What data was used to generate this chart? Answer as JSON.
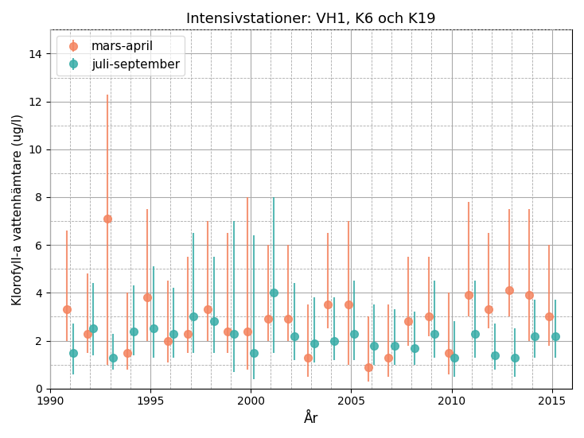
{
  "title": "Intensivstationer: VH1, K6 och K19",
  "xlabel": "År",
  "ylabel": "Klorofyll-a vattenhämtare (ug/l)",
  "xlim": [
    1990,
    2016
  ],
  "ylim": [
    0,
    15
  ],
  "yticks": [
    0,
    2,
    4,
    6,
    8,
    10,
    12,
    14
  ],
  "xticks": [
    1990,
    1995,
    2000,
    2005,
    2010,
    2015
  ],
  "legend": [
    "mars-april",
    "juli-september"
  ],
  "color_spring": "#f4845f",
  "color_summer": "#3aada8",
  "spring": {
    "years": [
      1991,
      1992,
      1993,
      1994,
      1995,
      1996,
      1997,
      1998,
      1999,
      2000,
      2001,
      2002,
      2003,
      2004,
      2005,
      2006,
      2007,
      2008,
      2009,
      2010,
      2011,
      2012,
      2013,
      2014,
      2015
    ],
    "mean": [
      3.3,
      2.3,
      7.1,
      1.5,
      3.8,
      2.0,
      2.3,
      3.3,
      2.4,
      2.4,
      2.9,
      2.9,
      1.3,
      3.5,
      3.5,
      0.9,
      1.3,
      2.8,
      3.0,
      1.5,
      3.9,
      3.3,
      4.1,
      3.9,
      3.0
    ],
    "err_lo": [
      1.3,
      0.8,
      6.1,
      0.7,
      1.8,
      0.9,
      0.8,
      1.3,
      0.9,
      1.6,
      0.9,
      0.9,
      0.8,
      1.0,
      2.5,
      0.6,
      0.8,
      1.0,
      0.8,
      0.9,
      0.9,
      0.8,
      1.1,
      1.9,
      1.2
    ],
    "err_hi": [
      3.3,
      2.5,
      5.2,
      2.5,
      3.7,
      2.5,
      3.2,
      3.7,
      4.1,
      5.6,
      3.1,
      3.1,
      2.2,
      3.0,
      3.5,
      2.1,
      2.2,
      2.7,
      2.5,
      2.5,
      3.9,
      3.2,
      3.4,
      3.6,
      3.0
    ]
  },
  "summer": {
    "years": [
      1991,
      1992,
      1993,
      1994,
      1995,
      1996,
      1997,
      1998,
      1999,
      2000,
      2001,
      2002,
      2003,
      2004,
      2005,
      2006,
      2007,
      2008,
      2009,
      2010,
      2011,
      2012,
      2013,
      2014,
      2015
    ],
    "mean": [
      1.5,
      2.5,
      1.3,
      2.4,
      2.5,
      2.3,
      3.0,
      2.8,
      2.3,
      1.5,
      4.0,
      2.2,
      1.9,
      2.0,
      2.3,
      1.8,
      1.8,
      1.7,
      2.3,
      1.3,
      2.3,
      1.4,
      1.3,
      2.2,
      2.2
    ],
    "err_lo": [
      0.9,
      1.1,
      0.5,
      1.0,
      1.2,
      1.0,
      1.5,
      1.3,
      1.6,
      1.1,
      2.5,
      1.0,
      0.8,
      0.8,
      1.1,
      0.8,
      0.8,
      0.7,
      1.0,
      0.8,
      1.0,
      0.6,
      0.8,
      0.9,
      0.9
    ],
    "err_hi": [
      1.2,
      1.9,
      1.0,
      1.9,
      2.6,
      1.9,
      3.5,
      2.7,
      4.7,
      4.9,
      4.0,
      2.2,
      1.9,
      1.8,
      2.2,
      1.7,
      1.5,
      1.5,
      2.2,
      1.5,
      2.2,
      1.3,
      1.2,
      1.5,
      1.5
    ]
  }
}
